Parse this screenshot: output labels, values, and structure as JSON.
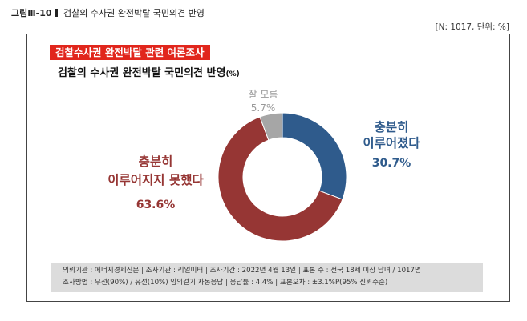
{
  "figure": {
    "label": "그림Ⅲ-10",
    "caption": "검찰의 수사권 완전박탈 국민의견 반영",
    "unit_note": "[N: 1017, 단위: %]"
  },
  "survey": {
    "banner": "검찰수사권 완전박탈 관련 여론조사",
    "subtitle": "검찰의 수사권 완전박탈 국민의견 반영",
    "subtitle_unit": "(%)"
  },
  "chart_data": {
    "type": "pie",
    "donut": true,
    "title": "검찰의 수사권 완전박탈 국민의견 반영",
    "unit": "%",
    "slices": [
      {
        "label_lines": [
          "충분히",
          "이루어졌다"
        ],
        "value": 30.7,
        "value_label": "30.7%",
        "color": "#2f5b8c"
      },
      {
        "label_lines": [
          "충분히",
          "이루어지지 못했다"
        ],
        "value": 63.6,
        "value_label": "63.6%",
        "color": "#963634"
      },
      {
        "label_lines": [
          "잘 모름"
        ],
        "value": 5.7,
        "value_label": "5.7%",
        "color": "#a6a6a6"
      }
    ]
  },
  "footer": {
    "line1": "의뢰기관 : 에너지경제신문  |  조사기관 : 리얼미터  |  조사기간 : 2022년 4월 13일  |  표본 수 : 전국 18세 이상 남녀 / 1017명",
    "line2": "조사방법 : 무선(90%) / 유선(10%) 임의걸기 자동응답  |  응답률 : 4.4%  |  표본오차 : ±3.1%P(95% 신뢰수준)"
  }
}
